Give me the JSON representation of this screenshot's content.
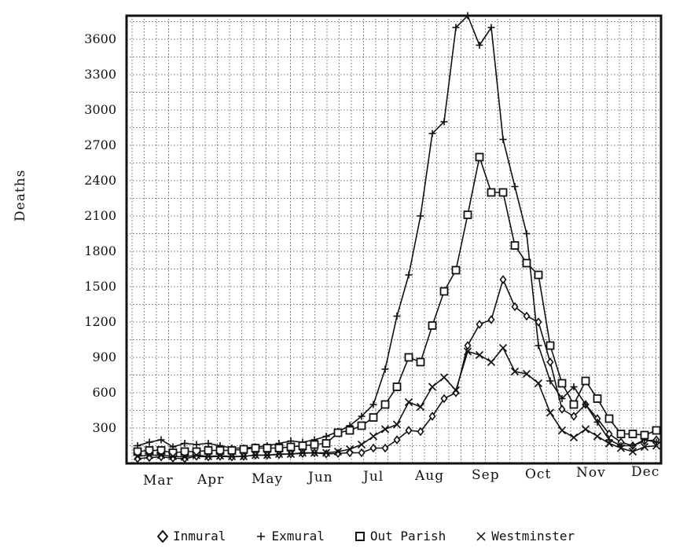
{
  "chart_data": {
    "type": "line",
    "title": "",
    "xlabel": "",
    "ylabel": "Deaths",
    "ylim": [
      0,
      3800
    ],
    "yticks": [
      300,
      600,
      900,
      1200,
      1500,
      1800,
      2100,
      2400,
      2700,
      3000,
      3300,
      3600
    ],
    "month_labels": [
      "Mar",
      "Apr",
      "May",
      "Jun",
      "Jul",
      "Aug",
      "Sep",
      "Oct",
      "Nov",
      "Dec"
    ],
    "grid": true,
    "legend_position": "bottom",
    "x_unit": "week (index 0 = first week of March)",
    "x": [
      0,
      1,
      2,
      3,
      4,
      5,
      6,
      7,
      8,
      9,
      10,
      11,
      12,
      13,
      14,
      15,
      16,
      17,
      18,
      19,
      20,
      21,
      22,
      23,
      24,
      25,
      26,
      27,
      28,
      29,
      30,
      31,
      32,
      33,
      34,
      35,
      36,
      37,
      38,
      39,
      40,
      41,
      42,
      43,
      44
    ],
    "series": [
      {
        "name": "Inmural",
        "marker": "diamond",
        "values": [
          40,
          50,
          55,
          45,
          40,
          60,
          55,
          60,
          55,
          60,
          70,
          70,
          75,
          80,
          85,
          90,
          80,
          85,
          90,
          90,
          130,
          130,
          200,
          280,
          270,
          400,
          550,
          600,
          1000,
          1180,
          1220,
          1560,
          1330,
          1250,
          1200,
          860,
          460,
          400,
          500,
          380,
          250,
          180,
          150,
          190,
          200
        ]
      },
      {
        "name": "Exmural",
        "marker": "plus",
        "values": [
          150,
          180,
          200,
          140,
          170,
          160,
          170,
          150,
          130,
          130,
          140,
          150,
          170,
          190,
          180,
          200,
          230,
          270,
          320,
          400,
          500,
          800,
          1250,
          1600,
          2100,
          2800,
          2900,
          3700,
          3800,
          3550,
          3700,
          2750,
          2350,
          1950,
          1000,
          700,
          550,
          650,
          500,
          350,
          200,
          150,
          150,
          200,
          180
        ]
      },
      {
        "name": "Out Parish",
        "marker": "square",
        "values": [
          100,
          110,
          110,
          90,
          100,
          100,
          110,
          110,
          110,
          120,
          130,
          130,
          130,
          140,
          150,
          160,
          170,
          260,
          280,
          320,
          390,
          500,
          650,
          900,
          860,
          1170,
          1460,
          1640,
          2110,
          2600,
          2300,
          2300,
          1850,
          1700,
          1600,
          1000,
          680,
          500,
          700,
          550,
          380,
          250,
          250,
          240,
          280
        ]
      },
      {
        "name": "Westminster",
        "marker": "x",
        "values": [
          60,
          70,
          70,
          60,
          55,
          70,
          60,
          65,
          60,
          60,
          70,
          70,
          80,
          80,
          90,
          90,
          90,
          100,
          120,
          160,
          230,
          290,
          330,
          520,
          480,
          650,
          730,
          620,
          950,
          920,
          860,
          980,
          780,
          760,
          680,
          430,
          280,
          220,
          290,
          230,
          170,
          130,
          100,
          140,
          150
        ]
      }
    ],
    "legend": [
      {
        "symbol": "◊",
        "label": "Inmural"
      },
      {
        "symbol": "+",
        "label": "Exmural"
      },
      {
        "symbol": "□",
        "label": "Out Parish"
      },
      {
        "symbol": "X",
        "label": "Westminster"
      }
    ]
  },
  "axis": {
    "ylabel": "Deaths",
    "yticks": [
      "3600",
      "3300",
      "3000",
      "2700",
      "2400",
      "2100",
      "1800",
      "1500",
      "1200",
      "900",
      "600",
      "300"
    ],
    "months": [
      "Mar",
      "Apr",
      "May",
      "Jun",
      "Jul",
      "Aug",
      "Sep",
      "Oct",
      "Nov",
      "Dec"
    ]
  },
  "legend": {
    "items": [
      {
        "label": "Inmural"
      },
      {
        "label": "Exmural"
      },
      {
        "label": "Out Parish"
      },
      {
        "label": "Westminster"
      }
    ]
  },
  "colors": {
    "ink": "#111111",
    "grid": "#444444",
    "background": "#ffffff"
  }
}
